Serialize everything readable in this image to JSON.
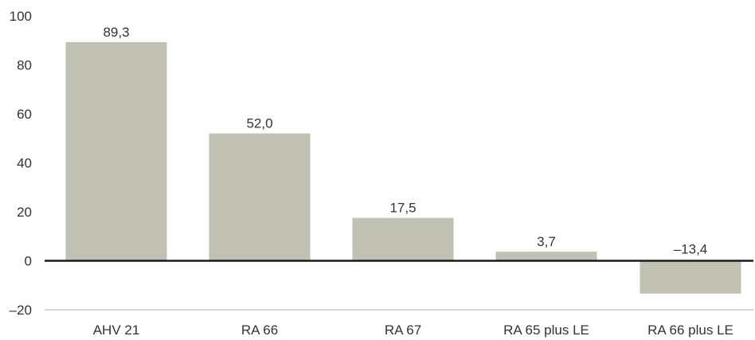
{
  "chart_data": {
    "type": "bar",
    "categories": [
      "AHV 21",
      "RA 66",
      "RA 67",
      "RA 65 plus LE",
      "RA 66 plus LE"
    ],
    "values": [
      89.3,
      52.0,
      17.5,
      3.7,
      -13.4
    ],
    "data_labels": [
      "89,3",
      "52,0",
      "17,5",
      "3,7",
      "–13,4"
    ],
    "yticks": [
      100,
      80,
      60,
      40,
      20,
      0,
      -20
    ],
    "ytick_labels": [
      "100",
      "80",
      "60",
      "40",
      "20",
      "0",
      "–20"
    ],
    "ylim": [
      -20,
      100
    ],
    "title": "",
    "xlabel": "",
    "ylabel": "",
    "bar_color": "#c1c1b3",
    "zero_line_color": "#1a1a1a",
    "bottom_axis_color": "#b0b0b0",
    "grid": false
  }
}
